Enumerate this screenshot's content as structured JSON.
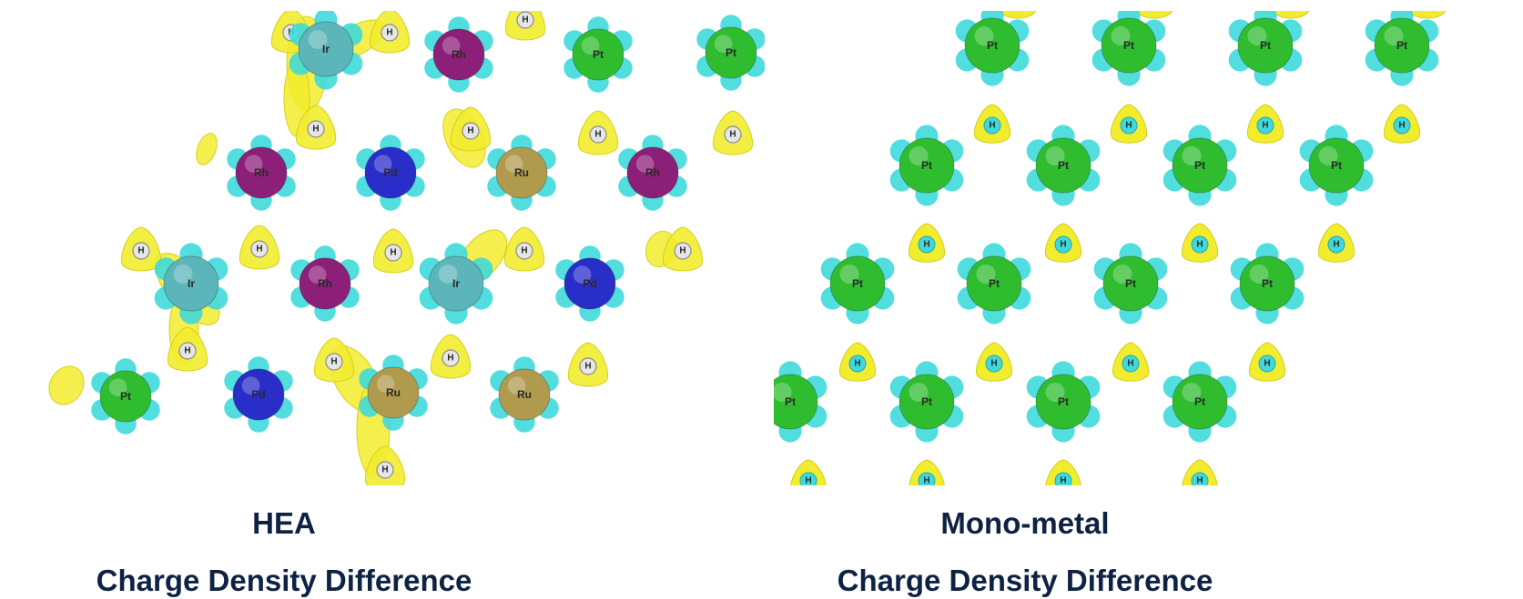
{
  "panels": [
    {
      "id": "hea",
      "title": "HEA",
      "subtitle": "Charge Density Difference",
      "atoms": [
        {
          "el": "H"
        },
        {
          "el": "Ir"
        },
        {
          "el": "H"
        },
        {
          "el": "Rh"
        },
        {
          "el": "H"
        },
        {
          "el": "Pt"
        },
        {
          "el": "Pt"
        },
        {
          "el": "H"
        },
        {
          "el": "H"
        },
        {
          "el": "H"
        },
        {
          "el": "H"
        },
        {
          "el": "Rh"
        },
        {
          "el": "Pd"
        },
        {
          "el": "Ru"
        },
        {
          "el": "Rh"
        },
        {
          "el": "H"
        },
        {
          "el": "H"
        },
        {
          "el": "H"
        },
        {
          "el": "H"
        },
        {
          "el": "H"
        },
        {
          "el": "Ir"
        },
        {
          "el": "Rh"
        },
        {
          "el": "Ir"
        },
        {
          "el": "Pd"
        },
        {
          "el": "H"
        },
        {
          "el": "H"
        },
        {
          "el": "H"
        },
        {
          "el": "H"
        },
        {
          "el": "Pt"
        },
        {
          "el": "Pd"
        },
        {
          "el": "Ru"
        },
        {
          "el": "Ru"
        },
        {
          "el": "H"
        }
      ]
    },
    {
      "id": "mono",
      "title": "Mono-metal",
      "subtitle": "Charge Density Difference",
      "atoms": [
        {
          "el": "Pt"
        },
        {
          "el": "Pt"
        },
        {
          "el": "Pt"
        },
        {
          "el": "Pt"
        },
        {
          "el": "H"
        },
        {
          "el": "H"
        },
        {
          "el": "H"
        },
        {
          "el": "H"
        },
        {
          "el": "Pt"
        },
        {
          "el": "Pt"
        },
        {
          "el": "Pt"
        },
        {
          "el": "Pt"
        },
        {
          "el": "H"
        },
        {
          "el": "H"
        },
        {
          "el": "H"
        },
        {
          "el": "H"
        },
        {
          "el": "Pt"
        },
        {
          "el": "Pt"
        },
        {
          "el": "Pt"
        },
        {
          "el": "Pt"
        },
        {
          "el": "H"
        },
        {
          "el": "H"
        },
        {
          "el": "H"
        },
        {
          "el": "H"
        },
        {
          "el": "Pt"
        },
        {
          "el": "Pt"
        },
        {
          "el": "Pt"
        },
        {
          "el": "Pt"
        },
        {
          "el": "H"
        },
        {
          "el": "H"
        },
        {
          "el": "H"
        },
        {
          "el": "H"
        }
      ]
    }
  ],
  "colors": {
    "Pt": "#2fbd2f",
    "Pd": "#2a2ec8",
    "Rh": "#8c1f78",
    "Ru": "#b09a4e",
    "Ir": "#5cb5b8",
    "H": "#e6e6e6",
    "accumulation": "#f2ec2e",
    "depletion": "#3fd9dc",
    "caption": "#0e2244"
  }
}
